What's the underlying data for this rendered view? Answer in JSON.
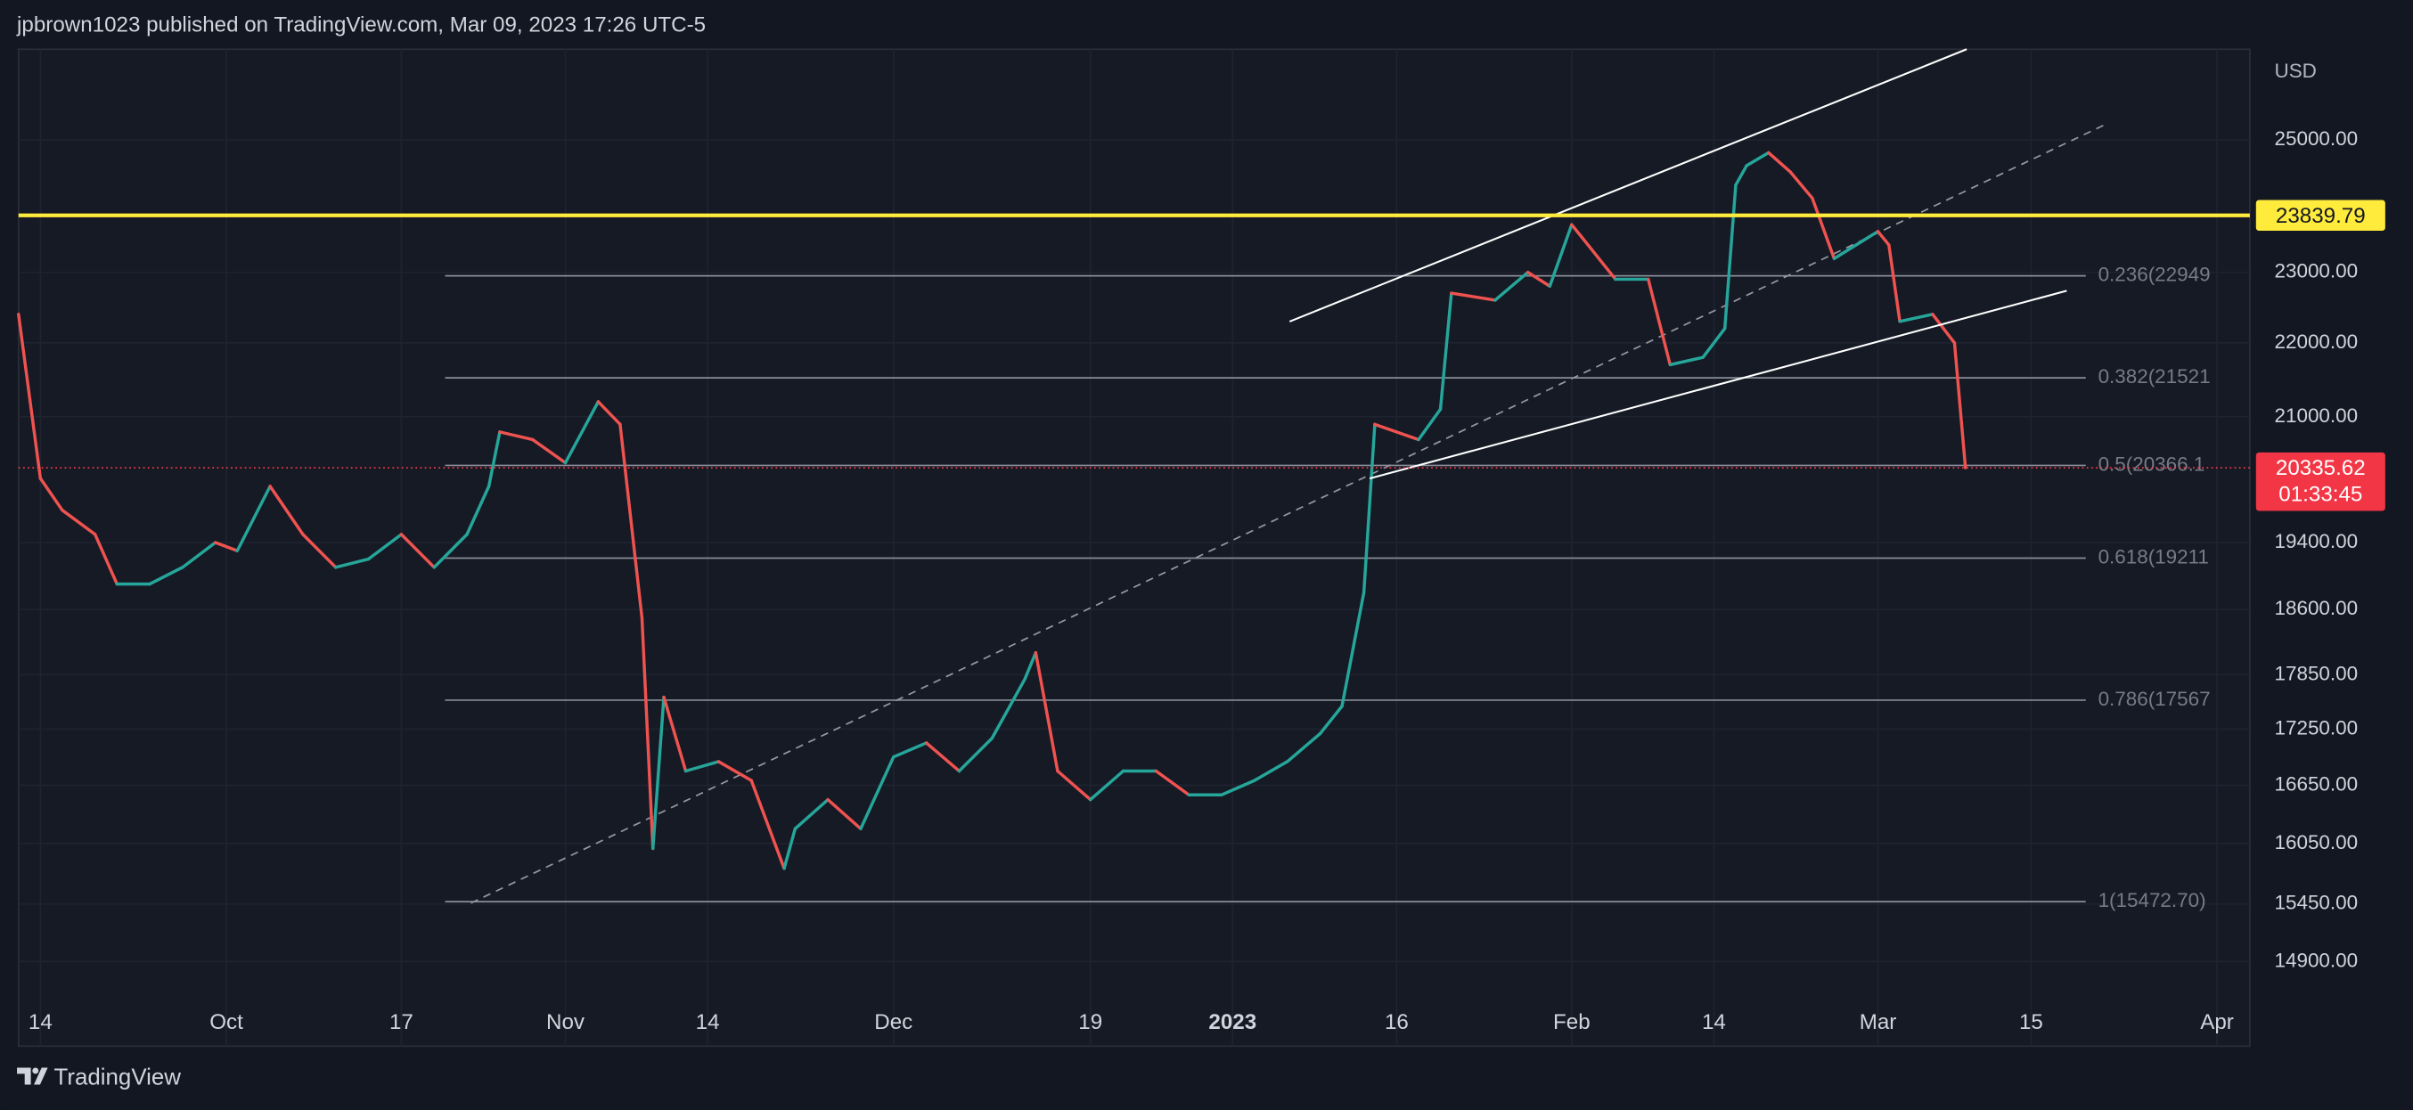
{
  "header": {
    "publisher": "jpbrown1023 published on TradingView.com, Mar 09, 2023 17:26 UTC-5"
  },
  "footer": {
    "brand": "TradingView"
  },
  "chart_data": {
    "type": "line",
    "currency": "USD",
    "log_scale": true,
    "grid": true,
    "colors": {
      "up": "#26a69a",
      "down": "#ef5350"
    },
    "x": [
      "2022-09-12",
      "2022-09-14",
      "2022-09-16",
      "2022-09-19",
      "2022-09-21",
      "2022-09-24",
      "2022-09-27",
      "2022-09-30",
      "2022-10-02",
      "2022-10-05",
      "2022-10-08",
      "2022-10-11",
      "2022-10-14",
      "2022-10-17",
      "2022-10-20",
      "2022-10-23",
      "2022-10-25",
      "2022-10-26",
      "2022-10-29",
      "2022-11-01",
      "2022-11-04",
      "2022-11-06",
      "2022-11-08",
      "2022-11-09",
      "2022-11-10",
      "2022-11-12",
      "2022-11-15",
      "2022-11-18",
      "2022-11-21",
      "2022-11-22",
      "2022-11-25",
      "2022-11-28",
      "2022-12-01",
      "2022-12-04",
      "2022-12-07",
      "2022-12-10",
      "2022-12-13",
      "2022-12-14",
      "2022-12-16",
      "2022-12-19",
      "2022-12-22",
      "2022-12-25",
      "2022-12-28",
      "2022-12-31",
      "2023-01-03",
      "2023-01-06",
      "2023-01-09",
      "2023-01-11",
      "2023-01-13",
      "2023-01-14",
      "2023-01-18",
      "2023-01-20",
      "2023-01-21",
      "2023-01-25",
      "2023-01-28",
      "2023-01-30",
      "2023-02-01",
      "2023-02-02",
      "2023-02-05",
      "2023-02-08",
      "2023-02-10",
      "2023-02-13",
      "2023-02-15",
      "2023-02-16",
      "2023-02-17",
      "2023-02-19",
      "2023-02-21",
      "2023-02-23",
      "2023-02-25",
      "2023-02-28",
      "2023-03-01",
      "2023-03-02",
      "2023-03-03",
      "2023-03-06",
      "2023-03-08",
      "2023-03-09"
    ],
    "values": [
      22400,
      20200,
      19800,
      19500,
      18900,
      18900,
      19100,
      19400,
      19300,
      20100,
      19500,
      19100,
      19200,
      19500,
      19100,
      19500,
      20100,
      20800,
      20700,
      20400,
      21200,
      20900,
      18500,
      16000,
      17600,
      16800,
      16900,
      16700,
      15800,
      16200,
      16500,
      16200,
      16950,
      17100,
      16800,
      17150,
      17800,
      18100,
      16800,
      16500,
      16800,
      16800,
      16550,
      16550,
      16700,
      16900,
      17200,
      17500,
      18800,
      20900,
      20700,
      21100,
      22700,
      22600,
      23000,
      22800,
      23700,
      23500,
      22900,
      22900,
      21700,
      21800,
      22200,
      24300,
      24600,
      24800,
      24500,
      24100,
      23200,
      23500,
      23600,
      23400,
      22300,
      22400,
      22000,
      20336
    ],
    "xlim": [
      "2022-09-12",
      "2023-04-04"
    ],
    "xticks": [
      {
        "value": "2022-09-14",
        "label": "14"
      },
      {
        "value": "2022-10-01",
        "label": "Oct"
      },
      {
        "value": "2022-10-17",
        "label": "17"
      },
      {
        "value": "2022-11-01",
        "label": "Nov"
      },
      {
        "value": "2022-11-14",
        "label": "14"
      },
      {
        "value": "2022-12-01",
        "label": "Dec"
      },
      {
        "value": "2022-12-19",
        "label": "19"
      },
      {
        "value": "2023-01-01",
        "label": "2023"
      },
      {
        "value": "2023-01-16",
        "label": "16"
      },
      {
        "value": "2023-02-01",
        "label": "Feb"
      },
      {
        "value": "2023-02-14",
        "label": "14"
      },
      {
        "value": "2023-03-01",
        "label": "Mar"
      },
      {
        "value": "2023-03-15",
        "label": "15"
      },
      {
        "value": "2023-04-01",
        "label": "Apr"
      }
    ],
    "ylim": [
      14127,
      26470
    ],
    "yticks": [
      {
        "value": 25000,
        "label": "25000.00"
      },
      {
        "value": 23000,
        "label": "23000.00"
      },
      {
        "value": 22000,
        "label": "22000.00"
      },
      {
        "value": 21000,
        "label": "21000.00"
      },
      {
        "value": 19400,
        "label": "19400.00"
      },
      {
        "value": 18600,
        "label": "18600.00"
      },
      {
        "value": 17850,
        "label": "17850.00"
      },
      {
        "value": 17250,
        "label": "17250.00"
      },
      {
        "value": 16650,
        "label": "16650.00"
      },
      {
        "value": 16050,
        "label": "16050.00"
      },
      {
        "value": 15450,
        "label": "15450.00"
      },
      {
        "value": 14900,
        "label": "14900.00"
      }
    ],
    "horizontal_line": {
      "value": 23839.79,
      "color": "#ffeb3b"
    },
    "last_price": {
      "value": 20335.62,
      "countdown": "01:33:45",
      "color": "#f23645"
    },
    "fib_range": [
      "2022-10-21",
      "2023-03-20"
    ],
    "fib_levels": [
      {
        "value": 22949,
        "label": "0.236(22949"
      },
      {
        "value": 21521,
        "label": "0.382(21521"
      },
      {
        "value": 20366.1,
        "label": "0.5(20366.1"
      },
      {
        "value": 19211,
        "label": "0.618(19211"
      },
      {
        "value": 17567,
        "label": "0.786(17567"
      },
      {
        "value": 15472.7,
        "label": "1(15472.70)"
      }
    ]
  }
}
